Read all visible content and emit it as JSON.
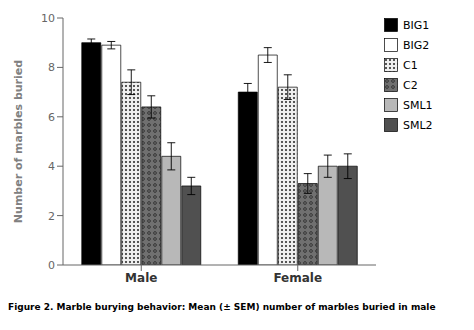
{
  "chart_data": {
    "type": "bar",
    "categories": [
      "Male",
      "Female"
    ],
    "series": [
      {
        "name": "BIG1",
        "color": "#000000",
        "values": [
          9.0,
          7.0
        ],
        "errors": [
          0.15,
          0.35
        ]
      },
      {
        "name": "BIG2",
        "color": "#ffffff",
        "values": [
          8.9,
          8.5
        ],
        "errors": [
          0.15,
          0.3
        ]
      },
      {
        "name": "C1",
        "color": "#f0f0f0",
        "values": [
          7.4,
          7.2
        ],
        "errors": [
          0.5,
          0.5
        ]
      },
      {
        "name": "C2",
        "color": "#707070",
        "values": [
          6.4,
          3.3
        ],
        "errors": [
          0.45,
          0.4
        ]
      },
      {
        "name": "SML1",
        "color": "#b8b8b8",
        "values": [
          4.4,
          4.0
        ],
        "errors": [
          0.55,
          0.45
        ]
      },
      {
        "name": "SML2",
        "color": "#505050",
        "values": [
          3.2,
          4.0
        ],
        "errors": [
          0.35,
          0.5
        ]
      }
    ],
    "ylabel": "Number of marbles buried",
    "ylim": [
      0,
      10
    ],
    "yticks": [
      0,
      2,
      4,
      6,
      8,
      10
    ],
    "grid": false,
    "legend": "right",
    "caption": "Figure 2. Marble burying behavior: Mean (± SEM) number of marbles buried in male"
  }
}
